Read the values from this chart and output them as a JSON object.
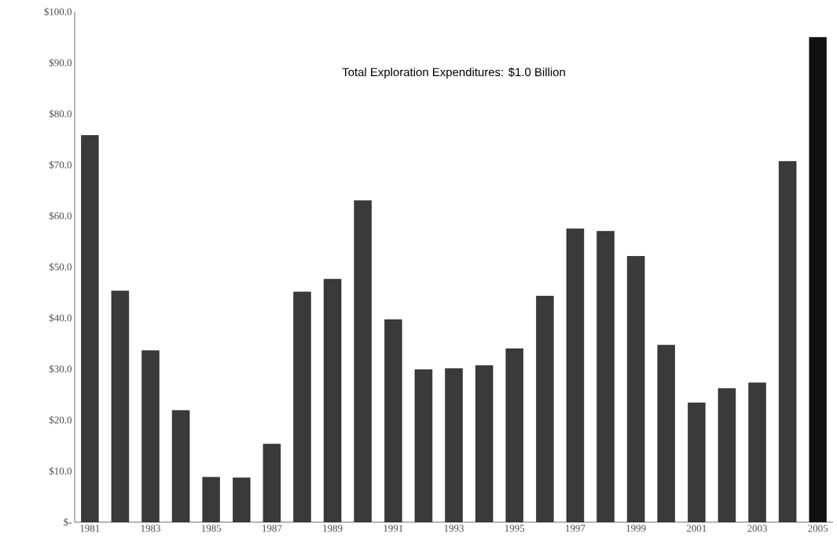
{
  "chart_data": {
    "type": "bar",
    "title": "Total Exploration Expenditures: $1.0 Billion",
    "categories": [
      "1981",
      null,
      "1983",
      null,
      "1985",
      null,
      "1987",
      null,
      "1989",
      null,
      "1991",
      null,
      "1993",
      null,
      "1995",
      null,
      "1997",
      null,
      "1999",
      null,
      "2001",
      null,
      "2003",
      null,
      "2005"
    ],
    "values": [
      75.8,
      45.3,
      33.6,
      21.9,
      8.8,
      8.7,
      15.3,
      45.1,
      47.6,
      63.0,
      39.7,
      29.9,
      30.1,
      30.7,
      34.0,
      44.3,
      57.5,
      57.0,
      52.1,
      34.7,
      23.4,
      26.2,
      27.3,
      70.7,
      95.0
    ],
    "colors": [
      "#3a3a3a",
      "#3a3a3a",
      "#3a3a3a",
      "#3a3a3a",
      "#3a3a3a",
      "#3a3a3a",
      "#3a3a3a",
      "#3a3a3a",
      "#3a3a3a",
      "#3a3a3a",
      "#3a3a3a",
      "#3a3a3a",
      "#3a3a3a",
      "#3a3a3a",
      "#3a3a3a",
      "#3a3a3a",
      "#3a3a3a",
      "#3a3a3a",
      "#3a3a3a",
      "#3a3a3a",
      "#3a3a3a",
      "#3a3a3a",
      "#3a3a3a",
      "#3a3a3a",
      "#111111"
    ],
    "ylim": [
      0,
      100
    ],
    "yticks": [
      {
        "value": 0,
        "label": "$-"
      },
      {
        "value": 10,
        "label": "$10.0"
      },
      {
        "value": 20,
        "label": "$20.0"
      },
      {
        "value": 30,
        "label": "$30.0"
      },
      {
        "value": 40,
        "label": "$40.0"
      },
      {
        "value": 50,
        "label": "$50.0"
      },
      {
        "value": 60,
        "label": "$60.0"
      },
      {
        "value": 70,
        "label": "$70.0"
      },
      {
        "value": 80,
        "label": "$80.0"
      },
      {
        "value": 90,
        "label": "$90.0"
      },
      {
        "value": 100,
        "label": "$100.0"
      }
    ],
    "grid": false
  }
}
